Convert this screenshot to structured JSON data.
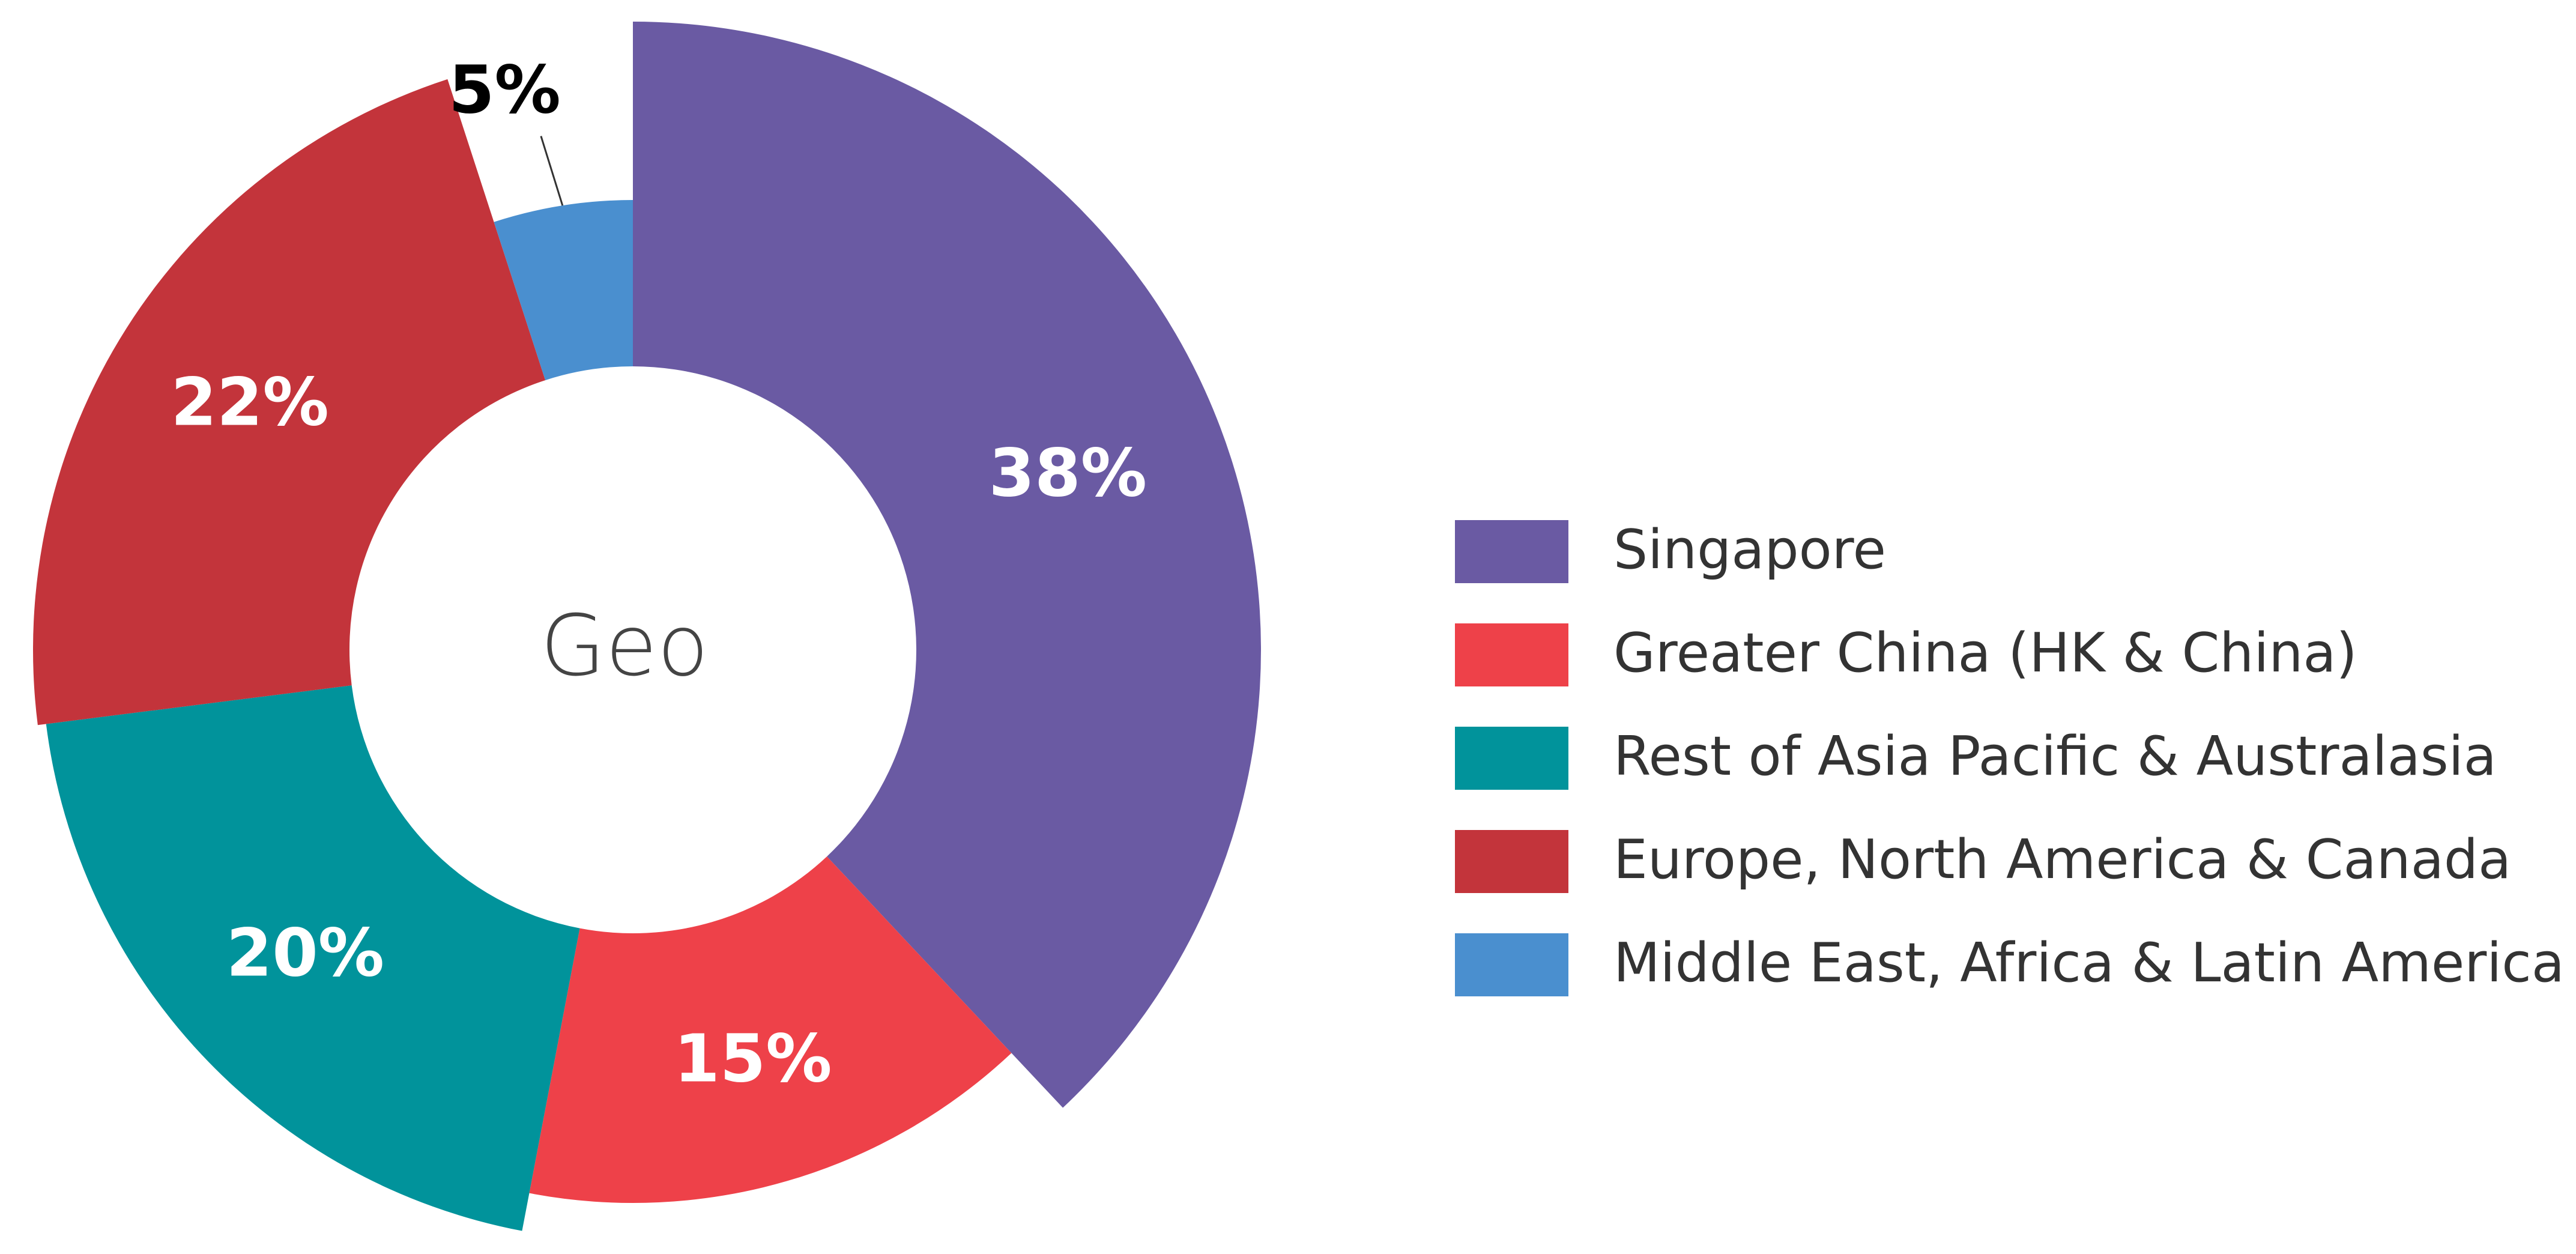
{
  "chart_data": {
    "type": "pie",
    "center_text": "Geo",
    "categories": [
      "Singapore",
      "Greater China (HK & China)",
      "Rest of Asia Pacific & Australasia",
      "Europe, North America & Canada",
      "Middle East, Africa & Latin America"
    ],
    "values": [
      38,
      15,
      20,
      22,
      5
    ],
    "value_labels": [
      "38%",
      "15%",
      "20%",
      "22%",
      "5%"
    ],
    "colors": [
      "#6a5aa3",
      "#ee4149",
      "#01939b",
      "#c3343b",
      "#4a8fcf"
    ],
    "legend": "right"
  }
}
